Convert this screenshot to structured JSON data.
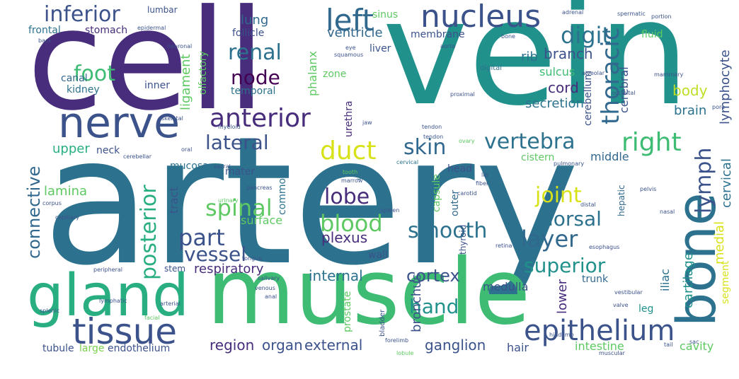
{
  "words": [
    {
      "text": "artery",
      "color": "#2c728e",
      "rot": 0
    },
    {
      "text": "vein",
      "color": "#21918c",
      "rot": 0
    },
    {
      "text": "cell",
      "color": "#472d7b",
      "rot": 0
    },
    {
      "text": "muscle",
      "color": "#3fbc73",
      "rot": 0
    },
    {
      "text": "gland",
      "color": "#28ae80",
      "rot": 0
    },
    {
      "text": "bone",
      "color": "#2c728e",
      "rot": -90
    },
    {
      "text": "nerve",
      "color": "#3b528b",
      "rot": 0
    },
    {
      "text": "tissue",
      "color": "#3b528b",
      "rot": 0
    },
    {
      "text": "epithelium",
      "color": "#3b528b",
      "rot": 0
    },
    {
      "text": "nucleus",
      "color": "#3b528b",
      "rot": 0
    },
    {
      "text": "inferior",
      "color": "#3b528b",
      "rot": 0
    },
    {
      "text": "left",
      "color": "#31688e",
      "rot": 0
    },
    {
      "text": "right",
      "color": "#3fbc73",
      "rot": 0
    },
    {
      "text": "anterior",
      "color": "#472d7b",
      "rot": 0
    },
    {
      "text": "vertebra",
      "color": "#2c728e",
      "rot": 0
    },
    {
      "text": "duct",
      "color": "#d8e219",
      "rot": 0
    },
    {
      "text": "digit",
      "color": "#2c728e",
      "rot": 0
    },
    {
      "text": "thoracic",
      "color": "#31688e",
      "rot": -90
    },
    {
      "text": "lymph",
      "color": "#3b528b",
      "rot": -90
    },
    {
      "text": "skin",
      "color": "#31688e",
      "rot": 0
    },
    {
      "text": "renal",
      "color": "#2c728e",
      "rot": 0
    },
    {
      "text": "foot",
      "color": "#3fbc73",
      "rot": 0
    },
    {
      "text": "node",
      "color": "#440154",
      "rot": 0
    },
    {
      "text": "lateral",
      "color": "#3b528b",
      "rot": 0
    },
    {
      "text": "spinal",
      "color": "#5ec962",
      "rot": 0
    },
    {
      "text": "blood",
      "color": "#5ec962",
      "rot": 0
    },
    {
      "text": "part",
      "color": "#3b528b",
      "rot": 0
    },
    {
      "text": "lobe",
      "color": "#472d7b",
      "rot": 0
    },
    {
      "text": "smooth",
      "color": "#2c728e",
      "rot": 0
    },
    {
      "text": "layer",
      "color": "#31688e",
      "rot": 0
    },
    {
      "text": "joint",
      "color": "#d8e219",
      "rot": 0
    },
    {
      "text": "dorsal",
      "color": "#2c728e",
      "rot": 0
    },
    {
      "text": "superior",
      "color": "#21918c",
      "rot": 0
    },
    {
      "text": "vessel",
      "color": "#3b528b",
      "rot": 0
    },
    {
      "text": "hand",
      "color": "#21918c",
      "rot": 0
    },
    {
      "text": "posterior",
      "color": "#28ae80",
      "rot": -90
    },
    {
      "text": "connective",
      "color": "#31688e",
      "rot": -90
    },
    {
      "text": "respiratory",
      "color": "#472d7b",
      "rot": 0
    },
    {
      "text": "cortex",
      "color": "#3b528b",
      "rot": 0
    },
    {
      "text": "internal",
      "color": "#2c728e",
      "rot": 0
    },
    {
      "text": "external",
      "color": "#3b528b",
      "rot": 0
    },
    {
      "text": "ganglion",
      "color": "#3b528b",
      "rot": 0
    },
    {
      "text": "region",
      "color": "#472d7b",
      "rot": 0
    },
    {
      "text": "organ",
      "color": "#3b528b",
      "rot": 0
    },
    {
      "text": "plexus",
      "color": "#472d7b",
      "rot": 0
    },
    {
      "text": "stomach",
      "color": "#472d7b",
      "rot": 0
    },
    {
      "text": "lung",
      "color": "#31688e",
      "rot": 0
    },
    {
      "text": "ventricle",
      "color": "#31688e",
      "rot": 0
    },
    {
      "text": "branch",
      "color": "#3b528b",
      "rot": 0
    },
    {
      "text": "rib",
      "color": "#2c728e",
      "rot": 0
    },
    {
      "text": "cord",
      "color": "#472d7b",
      "rot": 0
    },
    {
      "text": "body",
      "color": "#bddf26",
      "rot": 0
    },
    {
      "text": "brain",
      "color": "#2c728e",
      "rot": 0
    },
    {
      "text": "lymphocyte",
      "color": "#3b528b",
      "rot": -90
    },
    {
      "text": "cervical",
      "color": "#2c728e",
      "rot": -90
    },
    {
      "text": "medial",
      "color": "#d8e219",
      "rot": -90
    },
    {
      "text": "cartilage",
      "color": "#21918c",
      "rot": -90
    },
    {
      "text": "upper",
      "color": "#28ae80",
      "rot": 0
    },
    {
      "text": "lamina",
      "color": "#5ec962",
      "rot": 0
    },
    {
      "text": "mucosa",
      "color": "#2c728e",
      "rot": 0
    },
    {
      "text": "tract",
      "color": "#3b528b",
      "rot": -90
    },
    {
      "text": "surface",
      "color": "#5ec962",
      "rot": 0
    },
    {
      "text": "secretion",
      "color": "#2c728e",
      "rot": 0
    },
    {
      "text": "middle",
      "color": "#31688e",
      "rot": 0
    },
    {
      "text": "ligament",
      "color": "#5ec962",
      "rot": -90
    },
    {
      "text": "cerebral",
      "color": "#3b528b",
      "rot": -90
    },
    {
      "text": "bronchus",
      "color": "#3b528b",
      "rot": -90
    },
    {
      "text": "intestine",
      "color": "#5ec962",
      "rot": 0
    },
    {
      "text": "tubule",
      "color": "#3b528b",
      "rot": 0
    },
    {
      "text": "large",
      "color": "#7ad151",
      "rot": 0
    },
    {
      "text": "endothelium",
      "color": "#3b528b",
      "rot": 0
    },
    {
      "text": "hair",
      "color": "#3b528b",
      "rot": 0
    },
    {
      "text": "cavity",
      "color": "#5ec962",
      "rot": 0
    },
    {
      "text": "segment",
      "color": "#d8e219",
      "rot": -90
    },
    {
      "text": "lower",
      "color": "#472d7b",
      "rot": -90
    },
    {
      "text": "leg",
      "color": "#21918c",
      "rot": 0
    },
    {
      "text": "trunk",
      "color": "#31688e",
      "rot": 0
    },
    {
      "text": "medulla",
      "color": "#3b528b",
      "rot": 0
    },
    {
      "text": "iliac",
      "color": "#2c728e",
      "rot": -90
    },
    {
      "text": "frontal",
      "color": "#2c728e",
      "rot": 0
    },
    {
      "text": "canal",
      "color": "#31688e",
      "rot": 0
    },
    {
      "text": "kidney",
      "color": "#2c728e",
      "rot": 0
    },
    {
      "text": "follicle",
      "color": "#3b528b",
      "rot": 0
    },
    {
      "text": "sinus",
      "color": "#5ec962",
      "rot": 0
    },
    {
      "text": "membrane",
      "color": "#3b528b",
      "rot": 0
    },
    {
      "text": "liver",
      "color": "#3b528b",
      "rot": 0
    },
    {
      "text": "phalanx",
      "color": "#5ec962",
      "rot": -90
    },
    {
      "text": "zone",
      "color": "#5ec962",
      "rot": 0
    },
    {
      "text": "urethra",
      "color": "#472d7b",
      "rot": -90
    },
    {
      "text": "temporal",
      "color": "#2c728e",
      "rot": 0
    },
    {
      "text": "olfactory",
      "color": "#5ec962",
      "rot": -90
    },
    {
      "text": "inner",
      "color": "#3b528b",
      "rot": 0
    },
    {
      "text": "fluid",
      "color": "#5ec962",
      "rot": 0
    },
    {
      "text": "cerebellum",
      "color": "#3b528b",
      "rot": -90
    },
    {
      "text": "sulcus",
      "color": "#3fbc73",
      "rot": 0
    },
    {
      "text": "capsule",
      "color": "#5ec962",
      "rot": -90
    },
    {
      "text": "neck",
      "color": "#3b528b",
      "rot": 0
    },
    {
      "text": "mater",
      "color": "#3b528b",
      "rot": 0
    },
    {
      "text": "common",
      "color": "#2c728e",
      "rot": -90
    },
    {
      "text": "head",
      "color": "#3b528b",
      "rot": 0
    },
    {
      "text": "cistern",
      "color": "#5ec962",
      "rot": 0
    },
    {
      "text": "small",
      "color": "#2c728e",
      "rot": 0
    },
    {
      "text": "outer",
      "color": "#31688e",
      "rot": -90
    },
    {
      "text": "wall",
      "color": "#3b528b",
      "rot": 0
    },
    {
      "text": "stem",
      "color": "#3b528b",
      "rot": 0
    },
    {
      "text": "prostate",
      "color": "#5ec962",
      "rot": -90
    },
    {
      "text": "hepatic",
      "color": "#31688e",
      "rot": -90
    },
    {
      "text": "thyroid",
      "color": "#3b528b",
      "rot": -90
    },
    {
      "text": "lumbar",
      "color": "#3b528b",
      "rot": 0
    },
    {
      "text": "epidermal",
      "color": "#3b528b",
      "rot": 0
    },
    {
      "text": "spermatic",
      "color": "#3b528b",
      "rot": 0
    },
    {
      "text": "adrenal",
      "color": "#3b528b",
      "rot": 0
    },
    {
      "text": "portion",
      "color": "#3b528b",
      "rot": 0
    },
    {
      "text": "digital",
      "color": "#2c728e",
      "rot": 0
    },
    {
      "text": "alveolar",
      "color": "#3b528b",
      "rot": 0
    },
    {
      "text": "mammary",
      "color": "#3b528b",
      "rot": 0
    },
    {
      "text": "occipital",
      "color": "#3b528b",
      "rot": 0
    },
    {
      "text": "proximal",
      "color": "#3b528b",
      "rot": 0
    },
    {
      "text": "pulmonary",
      "color": "#3b528b",
      "rot": 0
    },
    {
      "text": "cervical",
      "color": "#2c728e",
      "rot": 0
    },
    {
      "text": "pancreas",
      "color": "#3b528b",
      "rot": 0
    },
    {
      "text": "tongue",
      "color": "#3b528b",
      "rot": 0
    },
    {
      "text": "esophagus",
      "color": "#3b528b",
      "rot": 0
    },
    {
      "text": "tendon",
      "color": "#3b528b",
      "rot": 0
    },
    {
      "text": "cerebellar",
      "color": "#3b528b",
      "rot": 0
    },
    {
      "text": "capillary",
      "color": "#3b528b",
      "rot": 0
    },
    {
      "text": "corpus",
      "color": "#3b528b",
      "rot": 0
    },
    {
      "text": "urinary",
      "color": "#5ec962",
      "rot": 0
    },
    {
      "text": "spleen",
      "color": "#3b528b",
      "rot": 0
    },
    {
      "text": "peripheral",
      "color": "#3b528b",
      "rot": 0
    },
    {
      "text": "lymphatic",
      "color": "#3b528b",
      "rot": 0
    },
    {
      "text": "arterial",
      "color": "#3b528b",
      "rot": 0
    },
    {
      "text": "splenic",
      "color": "#3b528b",
      "rot": 0
    },
    {
      "text": "facial",
      "color": "#5ec962",
      "rot": 0
    },
    {
      "text": "sacral",
      "color": "#3b528b",
      "rot": 0
    },
    {
      "text": "myeloid",
      "color": "#3b528b",
      "rot": 0
    },
    {
      "text": "valve",
      "color": "#3b528b",
      "rot": 0
    },
    {
      "text": "retina",
      "color": "#3b528b",
      "rot": 0
    },
    {
      "text": "hindlimb",
      "color": "#3b528b",
      "rot": 0
    },
    {
      "text": "forelimb",
      "color": "#3b528b",
      "rot": 0
    },
    {
      "text": "lobule",
      "color": "#5ec962",
      "rot": 0
    },
    {
      "text": "muscular",
      "color": "#3b528b",
      "rot": 0
    },
    {
      "text": "vestibular",
      "color": "#3b528b",
      "rot": 0
    },
    {
      "text": "bladder",
      "color": "#3b528b",
      "rot": -90
    },
    {
      "text": "carotid",
      "color": "#3b528b",
      "rot": 0
    },
    {
      "text": "marrow",
      "color": "#3b528b",
      "rot": 0
    },
    {
      "text": "tooth",
      "color": "#5ec962",
      "rot": 0
    },
    {
      "text": "fiber",
      "color": "#3b528b",
      "rot": 0
    },
    {
      "text": "lip",
      "color": "#3b528b",
      "rot": 0
    },
    {
      "text": "pelvis",
      "color": "#3b528b",
      "rot": 0
    },
    {
      "text": "distal",
      "color": "#3b528b",
      "rot": 0
    },
    {
      "text": "nasal",
      "color": "#3b528b",
      "rot": 0
    },
    {
      "text": "jaw",
      "color": "#3b528b",
      "rot": 0
    },
    {
      "text": "ovary",
      "color": "#5ec962",
      "rot": 0
    },
    {
      "text": "squamous",
      "color": "#3b528b",
      "rot": 0
    },
    {
      "text": "neuronal",
      "color": "#3b528b",
      "rot": 0
    },
    {
      "text": "skeletal",
      "color": "#3b528b",
      "rot": 0
    },
    {
      "text": "venous",
      "color": "#3b528b",
      "rot": 0
    },
    {
      "text": "salivary",
      "color": "#3b528b",
      "rot": 0
    },
    {
      "text": "tendon",
      "color": "#3b528b",
      "rot": 0
    },
    {
      "text": "eye",
      "color": "#3b528b",
      "rot": 0
    },
    {
      "text": "aorta",
      "color": "#3b528b",
      "rot": 0
    },
    {
      "text": "bone",
      "color": "#3b528b",
      "rot": 0
    },
    {
      "text": "back",
      "color": "#3b528b",
      "rot": 0
    },
    {
      "text": "oral",
      "color": "#3b528b",
      "rot": 0
    },
    {
      "text": "anal",
      "color": "#3b528b",
      "rot": 0
    },
    {
      "text": "tail",
      "color": "#3b528b",
      "rot": 0
    },
    {
      "text": "sac",
      "color": "#3b528b",
      "rot": 0
    },
    {
      "text": "pore",
      "color": "#3b528b",
      "rot": 0
    }
  ]
}
